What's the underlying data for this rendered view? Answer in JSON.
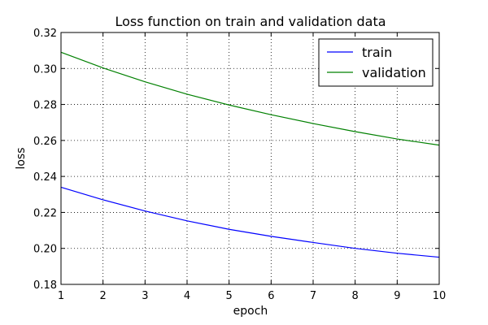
{
  "chart_data": {
    "type": "line",
    "title": "Loss function on train and validation data",
    "xlabel": "epoch",
    "ylabel": "loss",
    "x": [
      1,
      2,
      3,
      4,
      5,
      6,
      7,
      8,
      9,
      10
    ],
    "xlim": [
      1,
      10
    ],
    "ylim": [
      0.18,
      0.32
    ],
    "xticks": [
      "1",
      "2",
      "3",
      "4",
      "5",
      "6",
      "7",
      "8",
      "9",
      "10"
    ],
    "yticks": [
      "0.18",
      "0.20",
      "0.22",
      "0.24",
      "0.26",
      "0.28",
      "0.30",
      "0.32"
    ],
    "grid": true,
    "legend_position": "top-right",
    "series": [
      {
        "name": "train",
        "color": "#0000ff",
        "values": [
          0.234,
          0.227,
          0.2208,
          0.2153,
          0.2106,
          0.2067,
          0.2033,
          0.2,
          0.1973,
          0.1951
        ]
      },
      {
        "name": "validation",
        "color": "#008000",
        "values": [
          0.309,
          0.3003,
          0.2926,
          0.2857,
          0.2797,
          0.2743,
          0.2694,
          0.2649,
          0.2608,
          0.2574
        ]
      }
    ]
  }
}
